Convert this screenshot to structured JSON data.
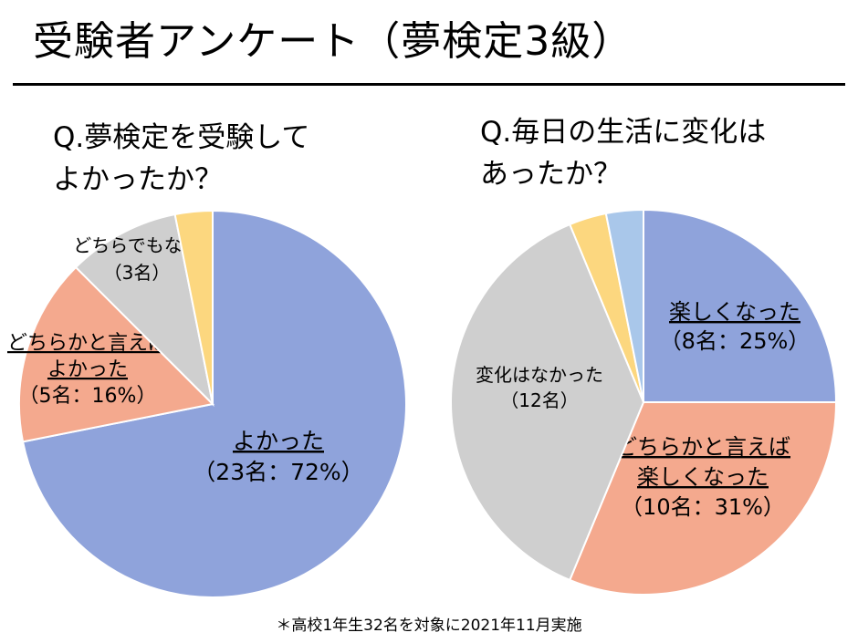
{
  "title": "受験者アンケート（夢検定3級）",
  "footnote": "＊高校1年生32名を対象に2021年11月実施",
  "chart_data": [
    {
      "type": "pie",
      "title": "Q.夢検定を受験して\nよかったか？",
      "slices": [
        {
          "name": "よかった",
          "count_label": "（23名：72%）",
          "value": 23,
          "color": "#8fa3db",
          "underline": true
        },
        {
          "name": "どちらかと言えば\nよかった",
          "count_label": "（5名：16%）",
          "value": 5,
          "color": "#f4a98e",
          "underline": true
        },
        {
          "name": "どちらでもない",
          "count_label": "（3名）",
          "value": 3,
          "color": "#cfcfcf",
          "underline": false
        },
        {
          "name": "",
          "count_label": "",
          "value": 1,
          "color": "#fcd77f",
          "underline": false
        }
      ]
    },
    {
      "type": "pie",
      "title": "Q.毎日の生活に変化は\nあったか？",
      "slices": [
        {
          "name": "楽しくなった",
          "count_label": "（8名：25%）",
          "value": 8,
          "color": "#8fa3db",
          "underline": true
        },
        {
          "name": "どちらかと言えば\n楽しくなった",
          "count_label": "（10名：31%）",
          "value": 10,
          "color": "#f4a98e",
          "underline": true
        },
        {
          "name": "変化はなかった",
          "count_label": "（12名）",
          "value": 12,
          "color": "#cfcfcf",
          "underline": false
        },
        {
          "name": "",
          "count_label": "",
          "value": 1,
          "color": "#fcd77f",
          "underline": false
        },
        {
          "name": "",
          "count_label": "",
          "value": 1,
          "color": "#a9c7ea",
          "underline": false
        }
      ]
    }
  ]
}
